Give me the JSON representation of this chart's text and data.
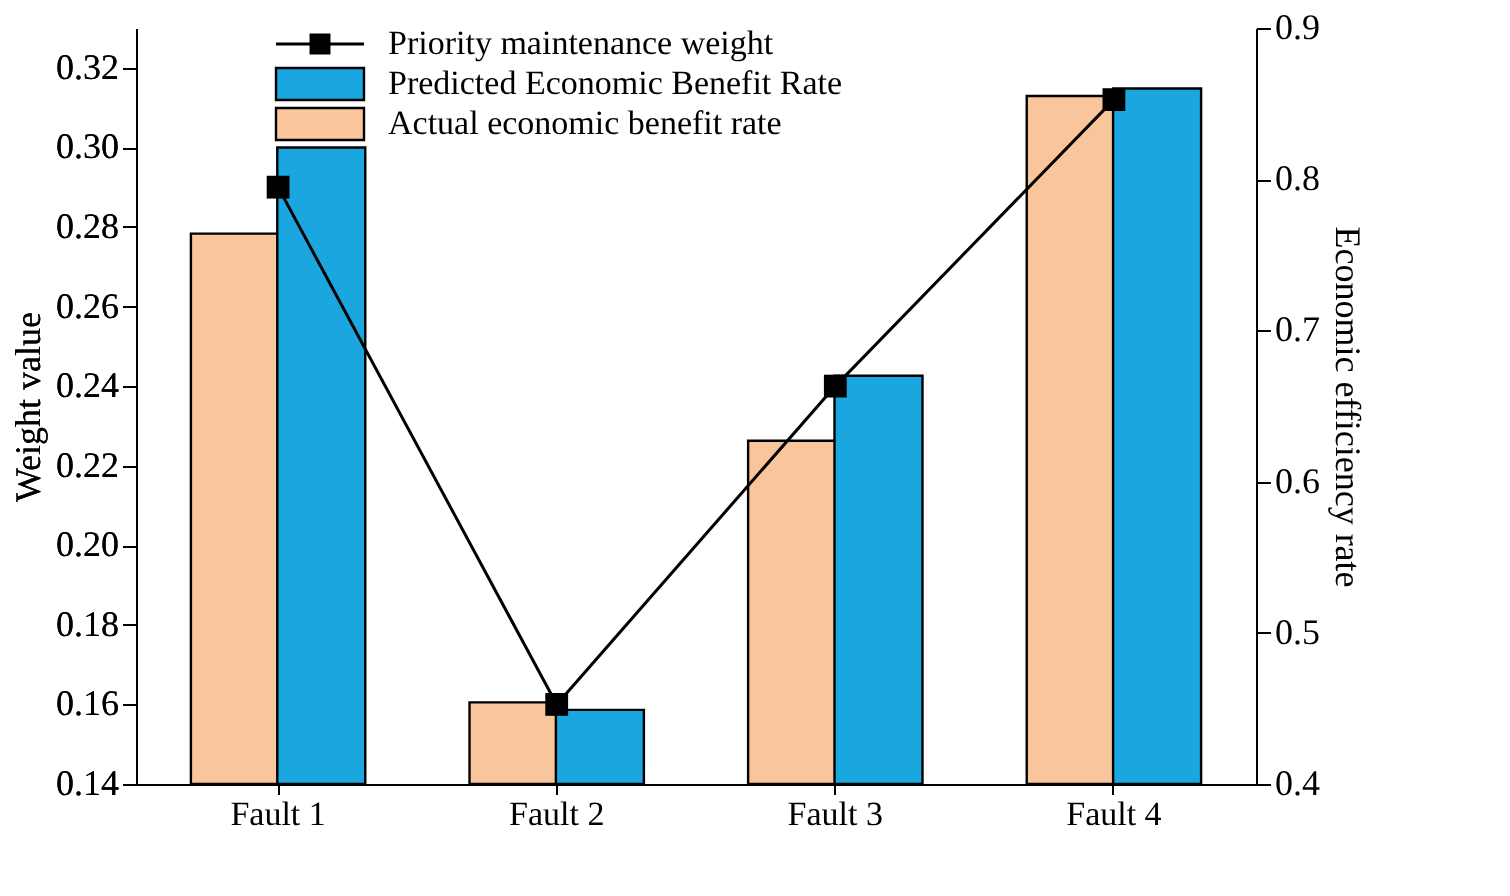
{
  "chart_data": {
    "type": "bar",
    "categories": [
      "Fault 1",
      "Fault 2",
      "Fault 3",
      "Fault 4"
    ],
    "ylabel": "Weight value",
    "y2label": "Economic efficiency rate",
    "series": [
      {
        "name": "Priority maintenance weight",
        "type": "line",
        "color": "#000000",
        "marker": "square",
        "values": [
          0.29,
          0.16,
          0.24,
          0.312
        ]
      },
      {
        "name": "Predicted Economic Benefit Rate",
        "axis": "y2",
        "color": "#1aa7e0",
        "values": [
          0.821,
          0.449,
          0.67,
          0.86
        ]
      },
      {
        "name": "Actual economic benefit rate",
        "axis": "y2",
        "color": "#f9c59a",
        "values": [
          0.764,
          0.454,
          0.627,
          0.855
        ]
      }
    ],
    "ylim": [
      0.14,
      0.33
    ],
    "yticks": [
      0.14,
      0.16,
      0.18,
      {
        "value": 0.2,
        "label": "0.20"
      },
      0.22,
      0.24,
      0.26,
      0.28,
      {
        "value": 0.3,
        "label": "0.30"
      },
      0.32
    ],
    "y2lim": [
      0.4,
      0.9
    ],
    "y2ticks": [
      0.4,
      0.5,
      0.6,
      0.7,
      0.8,
      0.9
    ],
    "legend": "top left",
    "grid": false
  }
}
